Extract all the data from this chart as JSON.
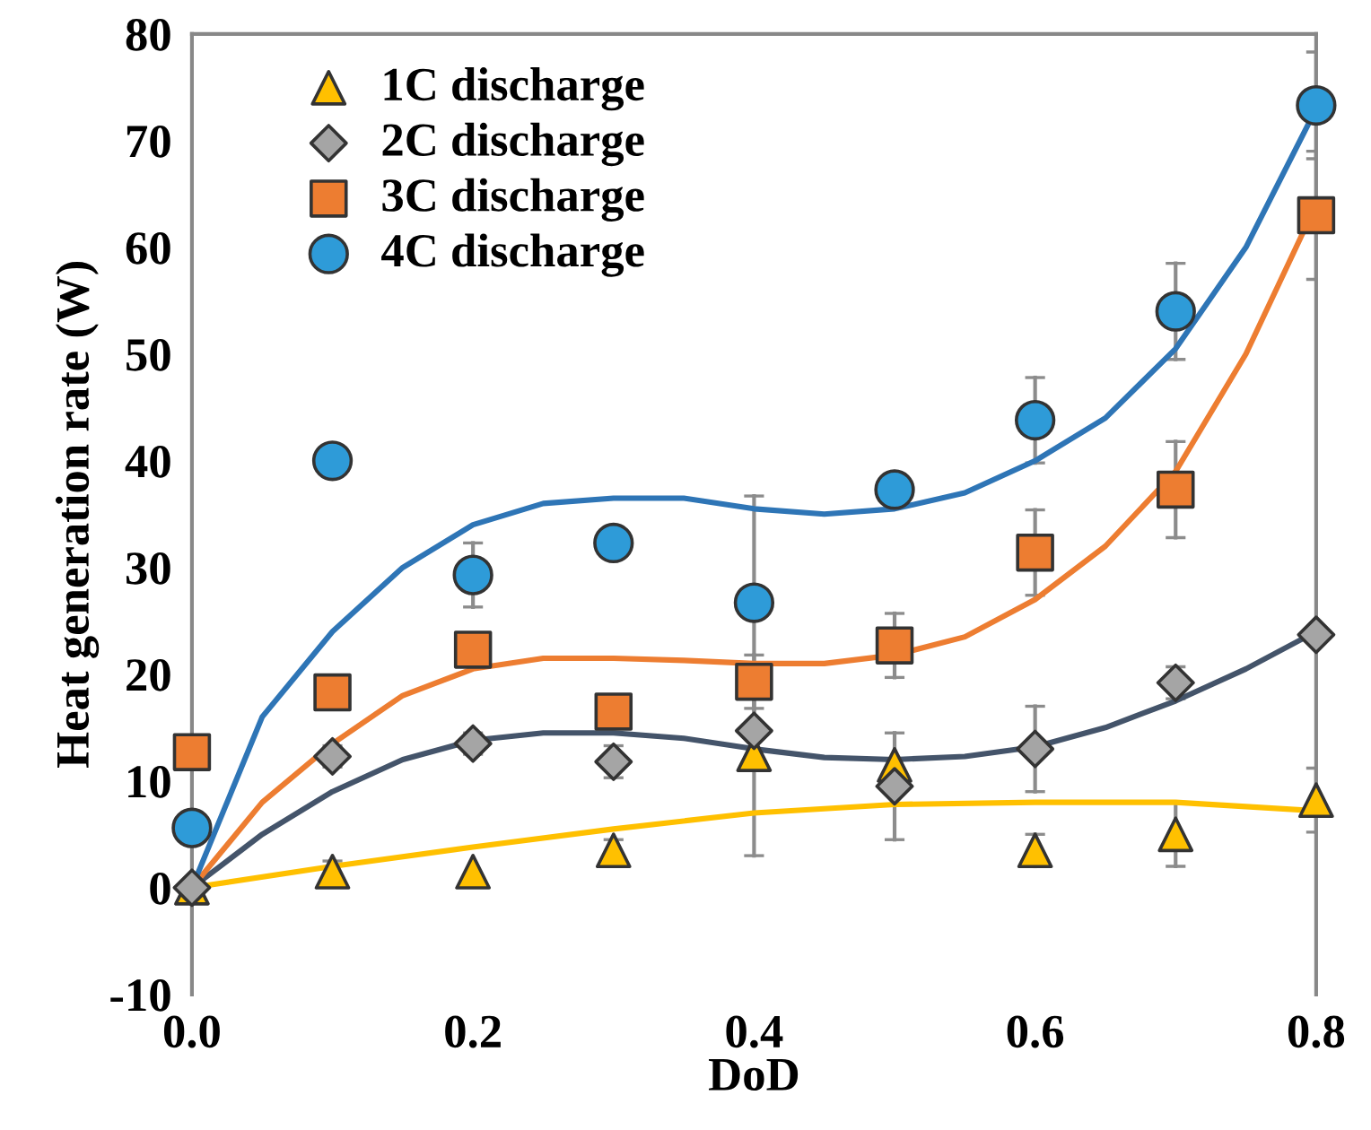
{
  "chart_data": {
    "type": "scatter",
    "xlabel": "DoD",
    "ylabel": "Heat generation rate (W)",
    "xlim": [
      0,
      0.8
    ],
    "ylim": [
      -10,
      80
    ],
    "xticks": [
      {
        "value": 0,
        "label": "0.0"
      },
      {
        "value": 0.2,
        "label": "0.2"
      },
      {
        "value": 0.4,
        "label": "0.4"
      },
      {
        "value": 0.6,
        "label": "0.6"
      },
      {
        "value": 0.8,
        "label": "0.8"
      }
    ],
    "yticks": [
      -10,
      0,
      10,
      20,
      30,
      40,
      50,
      60,
      70,
      80
    ],
    "grid": false,
    "legend": "top left",
    "series": [
      {
        "type": "line",
        "marker": "none",
        "color": "#ffc000",
        "x": [
          0,
          0.1,
          0.2,
          0.3,
          0.4,
          0.5,
          0.6,
          0.7,
          0.8
        ],
        "values": [
          0,
          2,
          3.8,
          5.5,
          7,
          7.8,
          8,
          8,
          7.2
        ]
      },
      {
        "type": "line",
        "marker": "none",
        "color": "#44546a",
        "x": [
          0,
          0.05,
          0.1,
          0.15,
          0.2,
          0.25,
          0.3,
          0.35,
          0.4,
          0.45,
          0.5,
          0.55,
          0.6,
          0.65,
          0.7,
          0.75,
          0.8
        ],
        "values": [
          0,
          5,
          9,
          12,
          13.8,
          14.5,
          14.5,
          14,
          13,
          12.2,
          12,
          12.3,
          13.2,
          15,
          17.5,
          20.5,
          24
        ]
      },
      {
        "type": "line",
        "marker": "none",
        "color": "#ed7d31",
        "x": [
          0,
          0.05,
          0.1,
          0.15,
          0.2,
          0.25,
          0.3,
          0.35,
          0.4,
          0.45,
          0.5,
          0.55,
          0.6,
          0.65,
          0.7,
          0.75,
          0.8
        ],
        "values": [
          0,
          8,
          13.5,
          18,
          20.5,
          21.5,
          21.5,
          21.3,
          21,
          21,
          21.8,
          23.5,
          27,
          32,
          39,
          50,
          64
        ]
      },
      {
        "type": "line",
        "marker": "none",
        "color": "#2e75b6",
        "x": [
          0,
          0.05,
          0.1,
          0.15,
          0.2,
          0.25,
          0.3,
          0.35,
          0.4,
          0.45,
          0.5,
          0.55,
          0.6,
          0.65,
          0.7,
          0.75,
          0.8
        ],
        "values": [
          0,
          16,
          24,
          30,
          34,
          36,
          36.5,
          36.5,
          35.5,
          35,
          35.5,
          37,
          40,
          44,
          50.5,
          60,
          73
        ]
      },
      {
        "name": "1C discharge",
        "marker": "triangle",
        "color": "#ffc000",
        "x": [
          0,
          0.1,
          0.2,
          0.3,
          0.4,
          0.5,
          0.6,
          0.7,
          0.8
        ],
        "values": [
          0,
          1.5,
          1.5,
          3.5,
          12.5,
          11.5,
          3.5,
          5,
          8.2
        ],
        "errors": [
          null,
          1,
          null,
          1,
          null,
          null,
          1.5,
          3,
          3
        ]
      },
      {
        "name": "2C discharge",
        "marker": "diamond",
        "color": "#a5a5a5",
        "x": [
          0,
          0.1,
          0.2,
          0.3,
          0.4,
          0.5,
          0.6,
          0.7,
          0.8
        ],
        "values": [
          0,
          12.3,
          13.5,
          11.8,
          14.7,
          9.5,
          13,
          19.2,
          23.7
        ],
        "errors": [
          null,
          1,
          1,
          1.5,
          3,
          5,
          4,
          1.5,
          null
        ]
      },
      {
        "name": "3C discharge",
        "marker": "square",
        "color": "#ed7d31",
        "x": [
          0,
          0.1,
          0.2,
          0.3,
          0.4,
          0.5,
          0.6,
          0.7,
          0.8
        ],
        "values": [
          12.7,
          18.3,
          22.3,
          16.5,
          19.3,
          22.7,
          31.4,
          37.3,
          63
        ],
        "errors": [
          null,
          null,
          null,
          null,
          2.5,
          3,
          4,
          4.5,
          6
        ]
      },
      {
        "name": "4C discharge",
        "marker": "circle",
        "color": "#2e9bd8",
        "x": [
          0,
          0.1,
          0.2,
          0.3,
          0.4,
          0.5,
          0.6,
          0.7,
          0.8
        ],
        "values": [
          5.6,
          40,
          29.3,
          32.3,
          26.7,
          37.3,
          43.8,
          54,
          73.3
        ],
        "errors": [
          null,
          null,
          3,
          null,
          [
            3,
            36.7
          ],
          1.5,
          4,
          4.5,
          5
        ]
      }
    ]
  }
}
